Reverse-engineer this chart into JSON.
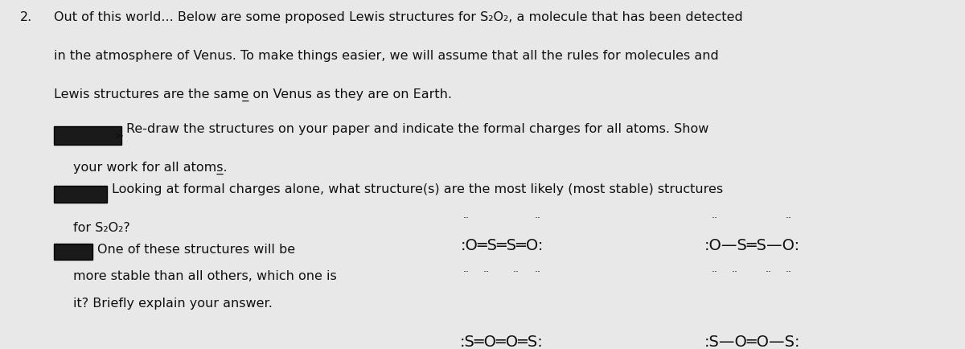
{
  "bg_color": "#e8e8e8",
  "text_color": "#111111",
  "fig_width": 12.0,
  "fig_height": 4.35,
  "paragraph1": "2.  Out of this world... Below are some proposed Lewis structures for S₂O₂, a molecule that has been detected\n    in the atmosphere of Venus. To make things easier, we will assume that all the rules for molecules and\n    Lewis structures are the same on Venus as they are on Earth.",
  "bullet1_text": "Re-draw the structures on your paper and indicate the formal charges for all atoms. Show\n    your work for all atoms.",
  "bullet2_text": "Looking at formal charges alone, what structure(s) are the most likely (most stable) structures\n    for S₂O₂?",
  "bullet3_text": "One of these structures will be\nmore stable than all others, which one is\nit? Briefly explain your answer.",
  "struct1": ":O═S═S═O:",
  "struct2": ":O—S═S—O:",
  "underline_same": true,
  "underline_all": true,
  "redacted_color": "#1a1a1a"
}
